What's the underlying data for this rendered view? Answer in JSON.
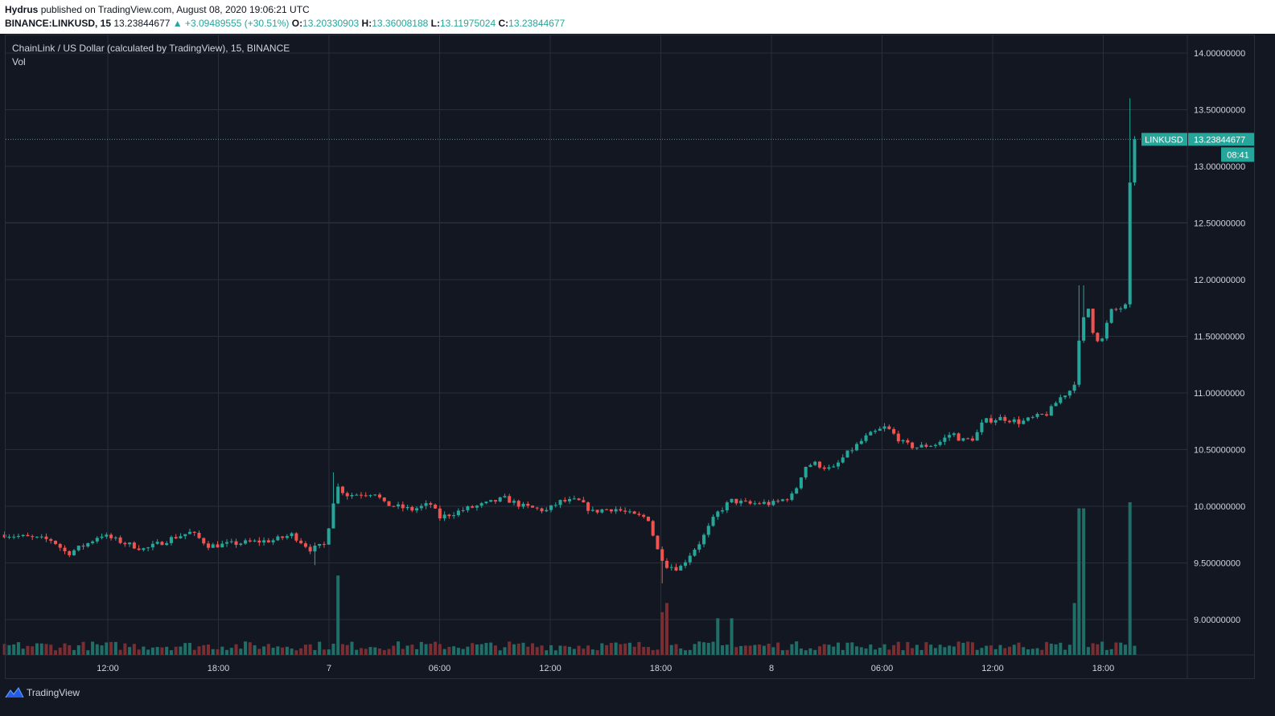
{
  "header": {
    "author": "Hydrus",
    "published_text": "published on TradingView.com, August 08, 2020 19:06:21 UTC",
    "symbol": "BINANCE:LINKUSD, 15",
    "last": "13.23844677",
    "change": "▲ +3.09489555 (+30.51%)",
    "o_label": "O:",
    "o_value": "13.20330903",
    "h_label": "H:",
    "h_value": "13.36008188",
    "l_label": "L:",
    "l_value": "13.11975024",
    "c_label": "C:",
    "c_value": "13.23844677"
  },
  "legend": {
    "title": "ChainLink / US Dollar (calculated by TradingView), 15, BINANCE",
    "volume": "Vol"
  },
  "footer": {
    "brand": "TradingView"
  },
  "colors": {
    "up": "#26a69a",
    "down": "#ef5350",
    "up_vol": "#1f6e68",
    "down_vol": "#7a2e31",
    "grid": "#2a2e39",
    "background": "#131722",
    "text": "#d1d4dc"
  },
  "chart_data": {
    "type": "candlestick",
    "symbol": "LINKUSD",
    "interval": "15",
    "exchange": "BINANCE",
    "last_price": 13.23844677,
    "last_price_label": "13.23844677",
    "price_tag": "LINKUSD",
    "countdown": "08:41",
    "y_range": [
      8.69,
      14.0
    ],
    "y_ticks": [
      {
        "value": 14.0,
        "label": "14.00000000"
      },
      {
        "value": 13.5,
        "label": "13.50000000"
      },
      {
        "value": 13.0,
        "label": "13.00000000"
      },
      {
        "value": 12.5,
        "label": "12.50000000"
      },
      {
        "value": 12.0,
        "label": "12.00000000"
      },
      {
        "value": 11.5,
        "label": "11.50000000"
      },
      {
        "value": 11.0,
        "label": "11.00000000"
      },
      {
        "value": 10.5,
        "label": "10.50000000"
      },
      {
        "value": 10.0,
        "label": "10.00000000"
      },
      {
        "value": 9.5,
        "label": "9.50000000"
      },
      {
        "value": 9.0,
        "label": "9.00000000"
      }
    ],
    "x_range_hours": [
      -2.2,
      51.3
    ],
    "x_ticks": [
      {
        "hour": 12,
        "label": "12:00"
      },
      {
        "hour": 18,
        "label": "18:00"
      },
      {
        "hour": 24,
        "label": "7"
      },
      {
        "hour": 30,
        "label": "06:00"
      },
      {
        "hour": 36,
        "label": "12:00"
      },
      {
        "hour": 42,
        "label": "18:00"
      },
      {
        "hour": 48,
        "label": "8"
      },
      {
        "hour": 54,
        "label": "06:00"
      },
      {
        "hour": 60,
        "label": "12:00"
      },
      {
        "hour": 66,
        "label": "18:00"
      }
    ],
    "x_start_hour": 6.4,
    "close_path": [
      [
        6.4,
        9.75
      ],
      [
        9.0,
        9.7
      ],
      [
        9.8,
        9.58
      ],
      [
        11.0,
        9.68
      ],
      [
        11.6,
        9.75
      ],
      [
        13.0,
        9.67
      ],
      [
        14.0,
        9.62
      ],
      [
        15.5,
        9.72
      ],
      [
        16.5,
        9.77
      ],
      [
        17.5,
        9.65
      ],
      [
        19.5,
        9.68
      ],
      [
        21.0,
        9.7
      ],
      [
        22.0,
        9.75
      ],
      [
        23.0,
        9.62
      ],
      [
        23.8,
        9.66
      ],
      [
        24.1,
        9.93
      ],
      [
        24.4,
        10.18
      ],
      [
        25.0,
        10.1
      ],
      [
        26.5,
        10.12
      ],
      [
        27.0,
        10.02
      ],
      [
        28.5,
        9.97
      ],
      [
        29.5,
        10.02
      ],
      [
        30.0,
        9.9
      ],
      [
        31.5,
        9.98
      ],
      [
        32.5,
        10.02
      ],
      [
        33.5,
        10.07
      ],
      [
        34.5,
        10.0
      ],
      [
        35.8,
        9.96
      ],
      [
        36.5,
        10.04
      ],
      [
        37.5,
        10.05
      ],
      [
        38.3,
        9.95
      ],
      [
        38.8,
        9.97
      ],
      [
        39.5,
        9.98
      ],
      [
        40.5,
        9.92
      ],
      [
        41.3,
        9.9
      ],
      [
        41.8,
        9.62
      ],
      [
        42.3,
        9.48
      ],
      [
        43.0,
        9.45
      ],
      [
        43.6,
        9.58
      ],
      [
        44.2,
        9.7
      ],
      [
        45.0,
        9.93
      ],
      [
        45.8,
        10.05
      ],
      [
        46.8,
        10.02
      ],
      [
        47.5,
        10.03
      ],
      [
        48.0,
        10.02
      ],
      [
        48.5,
        10.05
      ],
      [
        49.2,
        10.1
      ],
      [
        49.8,
        10.35
      ],
      [
        50.3,
        10.38
      ],
      [
        51.3,
        10.32
      ],
      [
        52.0,
        10.45
      ],
      [
        53.2,
        10.62
      ],
      [
        54.2,
        10.7
      ],
      [
        55.2,
        10.55
      ],
      [
        55.8,
        10.52
      ],
      [
        57.0,
        10.55
      ],
      [
        57.8,
        10.65
      ],
      [
        58.3,
        10.58
      ],
      [
        59.0,
        10.6
      ],
      [
        59.5,
        10.75
      ],
      [
        60.5,
        10.78
      ],
      [
        61.5,
        10.74
      ],
      [
        62.2,
        10.78
      ],
      [
        63.0,
        10.82
      ],
      [
        63.6,
        10.95
      ],
      [
        64.4,
        11.05
      ],
      [
        64.8,
        11.6
      ],
      [
        65.2,
        11.75
      ],
      [
        65.5,
        11.5
      ],
      [
        65.9,
        11.45
      ],
      [
        66.4,
        11.72
      ],
      [
        67.3,
        11.77
      ],
      [
        67.5,
        13.2
      ],
      [
        67.7,
        13.24
      ]
    ],
    "total_candles": 245,
    "events": [
      {
        "hour": 24.4,
        "volume": 0.52
      },
      {
        "hour": 42.1,
        "volume": 0.28
      },
      {
        "hour": 42.4,
        "volume": 0.34
      },
      {
        "hour": 45.0,
        "volume": 0.24
      },
      {
        "hour": 45.8,
        "volume": 0.24
      },
      {
        "hour": 64.8,
        "volume": 0.96
      },
      {
        "hour": 64.4,
        "volume": 0.34
      },
      {
        "hour": 67.5,
        "volume": 1.0
      }
    ]
  }
}
